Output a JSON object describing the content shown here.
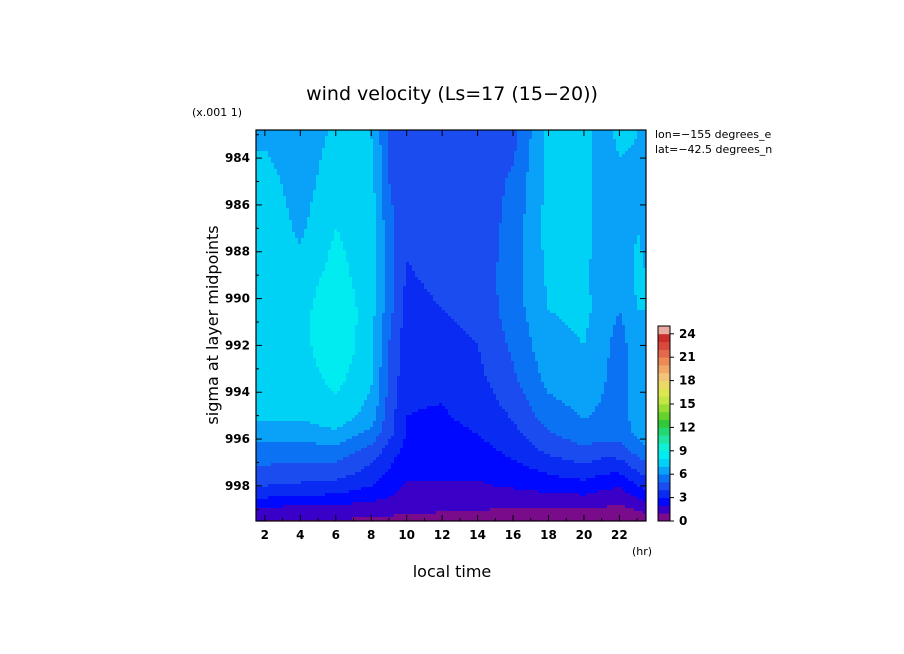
{
  "chart_data": {
    "type": "heatmap",
    "title": "wind velocity (Ls=17 (15−20))",
    "xlabel": "local time",
    "ylabel": "sigma at layer midpoints",
    "x_unit": "(hr)",
    "y_scale_note": "(x.001 1)",
    "annotations": [
      "lon=−155 degrees_e",
      "lat=−42.5 degrees_n"
    ],
    "xlim": [
      1.5,
      23.5
    ],
    "ylim": [
      999.5,
      982.8
    ],
    "x_ticks": [
      "2",
      "4",
      "6",
      "8",
      "10",
      "12",
      "14",
      "16",
      "18",
      "20",
      "22"
    ],
    "x_tick_values": [
      2,
      4,
      6,
      8,
      10,
      12,
      14,
      16,
      18,
      20,
      22
    ],
    "y_ticks": [
      "984",
      "986",
      "988",
      "990",
      "992",
      "994",
      "996",
      "998"
    ],
    "y_tick_values": [
      984,
      986,
      988,
      990,
      992,
      994,
      996,
      998
    ],
    "x": [
      1.5,
      2,
      4,
      6,
      8,
      9,
      10,
      12,
      14,
      16,
      18,
      20,
      21,
      22,
      23,
      23.5
    ],
    "y": [
      983.0,
      985.0,
      987.0,
      989.0,
      990.5,
      992.0,
      993.5,
      995.0,
      995.8,
      996.5,
      997.0,
      997.5,
      998.0,
      998.5,
      998.9,
      999.2,
      999.5
    ],
    "z": [
      [
        6.8,
        6.8,
        6.4,
        7.2,
        7.0,
        5.0,
        4.2,
        4.2,
        4.2,
        4.6,
        7.4,
        7.4,
        6.6,
        7.2,
        7.0,
        6.5
      ],
      [
        7.4,
        7.4,
        6.5,
        7.6,
        7.4,
        5.0,
        4.2,
        4.2,
        4.3,
        5.2,
        7.3,
        7.3,
        6.6,
        6.8,
        6.8,
        6.5
      ],
      [
        7.7,
        7.7,
        6.8,
        8.0,
        7.5,
        5.4,
        4.2,
        4.2,
        4.3,
        5.4,
        7.4,
        7.3,
        6.6,
        6.4,
        7.0,
        6.8
      ],
      [
        7.8,
        7.8,
        7.4,
        8.4,
        7.4,
        5.4,
        3.9,
        4.3,
        4.3,
        5.6,
        7.2,
        7.2,
        6.6,
        6.4,
        7.2,
        7.0
      ],
      [
        7.8,
        7.8,
        7.6,
        8.9,
        7.4,
        5.4,
        3.6,
        4.0,
        4.3,
        5.5,
        7.0,
        7.2,
        6.7,
        6.0,
        7.0,
        7.0
      ],
      [
        7.7,
        7.7,
        7.6,
        8.9,
        7.3,
        5.0,
        3.4,
        3.6,
        4.0,
        5.2,
        6.7,
        7.0,
        6.5,
        5.4,
        6.8,
        7.0
      ],
      [
        7.4,
        7.4,
        7.4,
        8.3,
        7.1,
        4.9,
        3.2,
        3.2,
        3.7,
        4.8,
        6.3,
        6.6,
        6.2,
        5.3,
        6.6,
        7.0
      ],
      [
        7.2,
        7.2,
        7.2,
        7.6,
        6.6,
        4.5,
        3.0,
        2.9,
        3.3,
        4.1,
        5.5,
        6.1,
        5.8,
        5.4,
        6.6,
        7.0
      ],
      [
        6.3,
        6.3,
        6.4,
        6.8,
        5.6,
        4.3,
        2.9,
        2.7,
        3.0,
        3.7,
        4.9,
        5.5,
        5.3,
        5.3,
        6.2,
        6.6
      ],
      [
        5.6,
        5.6,
        5.5,
        5.6,
        4.6,
        3.6,
        2.6,
        2.5,
        2.6,
        3.3,
        4.2,
        4.8,
        4.5,
        4.6,
        5.4,
        5.8
      ],
      [
        5.1,
        5.1,
        5.0,
        5.0,
        4.0,
        3.2,
        2.3,
        2.3,
        2.3,
        2.9,
        3.6,
        4.1,
        3.7,
        3.7,
        4.6,
        5.0
      ],
      [
        4.6,
        4.6,
        4.5,
        4.4,
        3.6,
        2.8,
        2.1,
        2.1,
        2.1,
        2.5,
        3.0,
        3.4,
        3.0,
        2.9,
        3.8,
        4.2
      ],
      [
        4.0,
        4.0,
        3.8,
        3.6,
        3.0,
        2.4,
        1.9,
        1.9,
        1.9,
        2.1,
        2.4,
        2.6,
        2.3,
        2.1,
        3.0,
        3.4
      ],
      [
        3.0,
        3.0,
        2.9,
        2.7,
        2.3,
        2.0,
        1.7,
        1.7,
        1.7,
        1.6,
        1.7,
        1.8,
        1.6,
        1.4,
        2.0,
        2.4
      ],
      [
        2.0,
        2.0,
        1.9,
        1.8,
        1.6,
        1.5,
        1.4,
        1.3,
        1.2,
        1.0,
        1.0,
        1.0,
        1.0,
        0.9,
        1.2,
        1.5
      ],
      [
        1.4,
        1.4,
        1.3,
        1.3,
        1.2,
        1.1,
        1.0,
        0.9,
        0.8,
        0.7,
        0.7,
        0.7,
        0.7,
        0.6,
        0.8,
        1.0
      ],
      [
        1.0,
        1.0,
        0.9,
        0.9,
        0.8,
        0.8,
        0.7,
        0.6,
        0.5,
        0.5,
        0.5,
        0.5,
        0.5,
        0.4,
        0.5,
        0.7
      ]
    ],
    "levels_step": 1,
    "colorbar_ticks": [
      "0",
      "3",
      "6",
      "9",
      "12",
      "15",
      "18",
      "21",
      "24"
    ],
    "colorbar_min": 0,
    "colorbar_max": 25,
    "colorbar_stops": [
      {
        "v": 0,
        "c": "#7a0b8a"
      },
      {
        "v": 1,
        "c": "#3a00c8"
      },
      {
        "v": 2,
        "c": "#0008ff"
      },
      {
        "v": 3,
        "c": "#0a2cf2"
      },
      {
        "v": 4,
        "c": "#1a4cf0"
      },
      {
        "v": 5,
        "c": "#0c72f4"
      },
      {
        "v": 6,
        "c": "#0aa2f8"
      },
      {
        "v": 7,
        "c": "#00d2f6"
      },
      {
        "v": 8,
        "c": "#00ecf0"
      },
      {
        "v": 9,
        "c": "#10f0d6"
      },
      {
        "v": 10,
        "c": "#1ee6a2"
      },
      {
        "v": 11,
        "c": "#22d870"
      },
      {
        "v": 12,
        "c": "#33c83a"
      },
      {
        "v": 13,
        "c": "#66d22c"
      },
      {
        "v": 14,
        "c": "#96dc34"
      },
      {
        "v": 15,
        "c": "#c2e644"
      },
      {
        "v": 16,
        "c": "#dce650"
      },
      {
        "v": 17,
        "c": "#ecd866"
      },
      {
        "v": 18,
        "c": "#f2c47a"
      },
      {
        "v": 19,
        "c": "#f0a868"
      },
      {
        "v": 20,
        "c": "#ec8a56"
      },
      {
        "v": 21,
        "c": "#e4684a"
      },
      {
        "v": 22,
        "c": "#d8483c"
      },
      {
        "v": 23,
        "c": "#cc2e2e"
      },
      {
        "v": 24,
        "c": "#e9a9a0"
      },
      {
        "v": 25,
        "c": "#f6d8d0"
      }
    ]
  }
}
